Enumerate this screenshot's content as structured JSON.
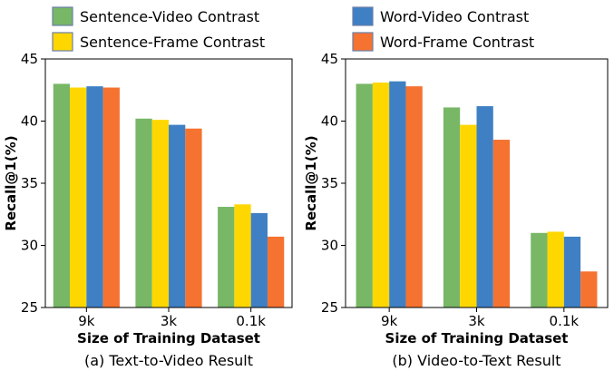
{
  "legend": [
    {
      "label": "Sentence-Video Contrast",
      "color": "#77b766"
    },
    {
      "label": "Sentence-Frame Contrast",
      "color": "#ffd700"
    },
    {
      "label": "Word-Video Contrast",
      "color": "#3f80c4"
    },
    {
      "label": "Word-Frame Contrast",
      "color": "#f57230"
    }
  ],
  "chart_data": [
    {
      "type": "bar",
      "caption": "(a) Text-to-Video Result",
      "xlabel": "Size of Training Dataset",
      "ylabel": "Recall@1(%)",
      "categories": [
        "9k",
        "3k",
        "0.1k"
      ],
      "ylim": [
        25,
        45
      ],
      "yticks": [
        25,
        30,
        35,
        40,
        45
      ],
      "series": [
        {
          "name": "Sentence-Video Contrast",
          "color": "#77b766",
          "values": [
            43.0,
            40.2,
            33.1
          ]
        },
        {
          "name": "Sentence-Frame Contrast",
          "color": "#ffd700",
          "values": [
            42.7,
            40.1,
            33.3
          ]
        },
        {
          "name": "Word-Video Contrast",
          "color": "#3f80c4",
          "values": [
            42.8,
            39.7,
            32.6
          ]
        },
        {
          "name": "Word-Frame Contrast",
          "color": "#f57230",
          "values": [
            42.7,
            39.4,
            30.7
          ]
        }
      ]
    },
    {
      "type": "bar",
      "caption": "(b) Video-to-Text Result",
      "xlabel": "Size of Training Dataset",
      "ylabel": "Recall@1(%)",
      "categories": [
        "9k",
        "3k",
        "0.1k"
      ],
      "ylim": [
        25,
        45
      ],
      "yticks": [
        25,
        30,
        35,
        40,
        45
      ],
      "series": [
        {
          "name": "Sentence-Video Contrast",
          "color": "#77b766",
          "values": [
            43.0,
            41.1,
            31.0
          ]
        },
        {
          "name": "Sentence-Frame Contrast",
          "color": "#ffd700",
          "values": [
            43.1,
            39.7,
            31.1
          ]
        },
        {
          "name": "Word-Video Contrast",
          "color": "#3f80c4",
          "values": [
            43.2,
            41.2,
            30.7
          ]
        },
        {
          "name": "Word-Frame Contrast",
          "color": "#f57230",
          "values": [
            42.8,
            38.5,
            27.9
          ]
        }
      ]
    }
  ]
}
